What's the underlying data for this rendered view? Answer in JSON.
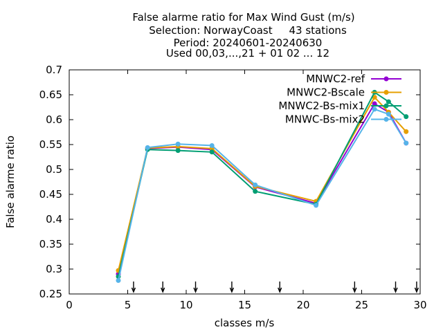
{
  "chart_data": {
    "type": "line",
    "title_lines": [
      "False alarme ratio  for Max Wind Gust (m/s)",
      "Selection: NorwayCoast     43 stations",
      "Period: 20240601-20240630",
      "Used 00,03,...,21 + 01 02 ... 12"
    ],
    "xlabel": "classes m/s",
    "ylabel": "False alarme ratio",
    "xlim": [
      0,
      30
    ],
    "ylim": [
      0.25,
      0.7
    ],
    "xticks": [
      "0",
      "5",
      "10",
      "15",
      "20",
      "25",
      "30"
    ],
    "yticks": [
      "0.25",
      "0.3",
      "0.35",
      "0.4",
      "0.45",
      "0.5",
      "0.55",
      "0.6",
      "0.65",
      "0.7"
    ],
    "legend_position": "top-right",
    "grid": false,
    "arrow_x": [
      5.5,
      8,
      10.8,
      13.9,
      18,
      24.4,
      27.9,
      29.7
    ],
    "series": [
      {
        "name": "MNWC2-ref",
        "color": "#9400d3",
        "x": [
          4.2,
          6.7,
          9.3,
          12.2,
          15.9,
          21.1,
          26.1,
          27.3,
          28.8
        ],
        "y": [
          0.29,
          0.542,
          0.545,
          0.54,
          0.465,
          0.432,
          0.632,
          0.615,
          0.553
        ]
      },
      {
        "name": "MNWC2-Bscale",
        "color": "#e69f00",
        "x": [
          4.2,
          6.7,
          9.3,
          12.2,
          15.9,
          21.1,
          26.1,
          27.3,
          28.8
        ],
        "y": [
          0.297,
          0.543,
          0.546,
          0.542,
          0.466,
          0.436,
          0.645,
          0.615,
          0.576
        ]
      },
      {
        "name": "MNWC2-Bs-mix1",
        "color": "#009e73",
        "x": [
          4.2,
          6.7,
          9.3,
          12.2,
          15.9,
          21.1,
          26.1,
          27.3,
          28.8
        ],
        "y": [
          0.285,
          0.54,
          0.538,
          0.535,
          0.456,
          0.43,
          0.655,
          0.636,
          0.606
        ]
      },
      {
        "name": "MNWC-Bs-mix2",
        "color": "#56b4e9",
        "x": [
          4.2,
          6.7,
          9.3,
          12.2,
          15.9,
          21.1,
          26.1,
          27.3,
          28.8
        ],
        "y": [
          0.277,
          0.544,
          0.551,
          0.548,
          0.469,
          0.428,
          0.621,
          0.611,
          0.553
        ]
      }
    ]
  }
}
